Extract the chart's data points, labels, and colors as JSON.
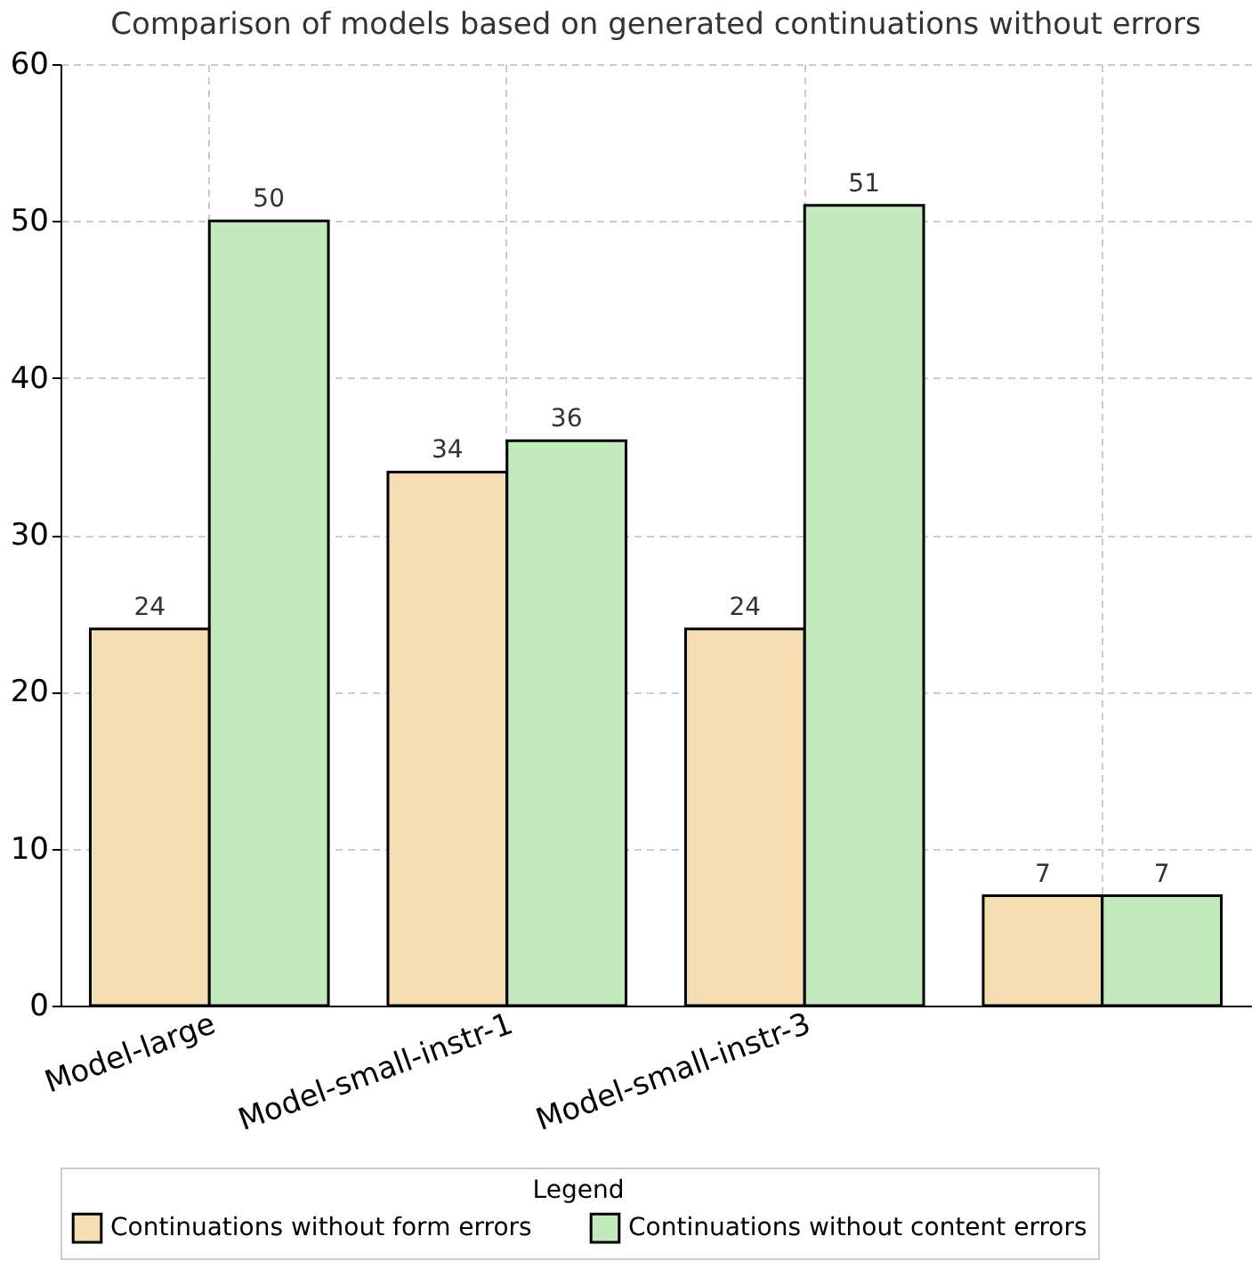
{
  "chart_data": {
    "type": "bar",
    "title": "Comparison of models based on generated continuations without errors",
    "categories": [
      "Model-large",
      "Model-small-instr-1",
      "Model-small-instr-3",
      null
    ],
    "series": [
      {
        "name": "Continuations without form errors",
        "color": "#f5deb3",
        "values": [
          24,
          34,
          24,
          7
        ]
      },
      {
        "name": "Continuations without content errors",
        "color": "#c2eabd",
        "values": [
          50,
          36,
          51,
          7
        ]
      }
    ],
    "ylim": [
      0,
      60
    ],
    "yticks": [
      0,
      10,
      20,
      30,
      40,
      50,
      60
    ],
    "grid": true,
    "legend": "bottom",
    "legend_title": "Legend",
    "data_labels": true
  }
}
